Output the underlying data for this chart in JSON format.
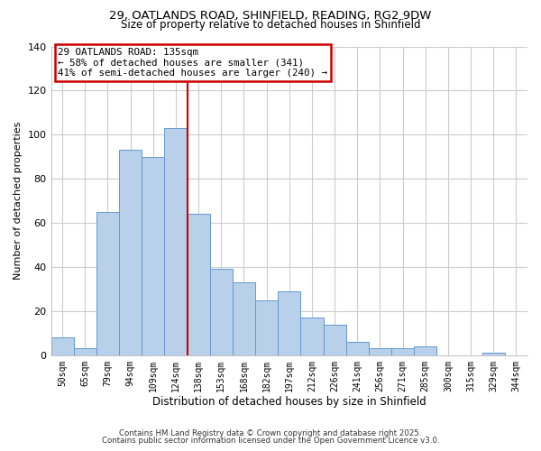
{
  "title_line1": "29, OATLANDS ROAD, SHINFIELD, READING, RG2 9DW",
  "title_line2": "Size of property relative to detached houses in Shinfield",
  "xlabel": "Distribution of detached houses by size in Shinfield",
  "ylabel": "Number of detached properties",
  "bar_labels": [
    "50sqm",
    "65sqm",
    "79sqm",
    "94sqm",
    "109sqm",
    "124sqm",
    "138sqm",
    "153sqm",
    "168sqm",
    "182sqm",
    "197sqm",
    "212sqm",
    "226sqm",
    "241sqm",
    "256sqm",
    "271sqm",
    "285sqm",
    "300sqm",
    "315sqm",
    "329sqm",
    "344sqm"
  ],
  "bar_heights": [
    8,
    3,
    65,
    93,
    90,
    103,
    64,
    39,
    33,
    25,
    29,
    17,
    14,
    6,
    3,
    3,
    4,
    0,
    0,
    1,
    0
  ],
  "bar_color": "#b8d0ea",
  "bar_edge_color": "#6699cc",
  "vline_color": "#cc0000",
  "annotation_title": "29 OATLANDS ROAD: 135sqm",
  "annotation_line2": "← 58% of detached houses are smaller (341)",
  "annotation_line3": "41% of semi-detached houses are larger (240) →",
  "annotation_box_edge": "#cc0000",
  "ylim": [
    0,
    140
  ],
  "yticks": [
    0,
    20,
    40,
    60,
    80,
    100,
    120,
    140
  ],
  "footnote1": "Contains HM Land Registry data © Crown copyright and database right 2025.",
  "footnote2": "Contains public sector information licensed under the Open Government Licence v3.0.",
  "background_color": "#ffffff",
  "grid_color": "#cccccc"
}
